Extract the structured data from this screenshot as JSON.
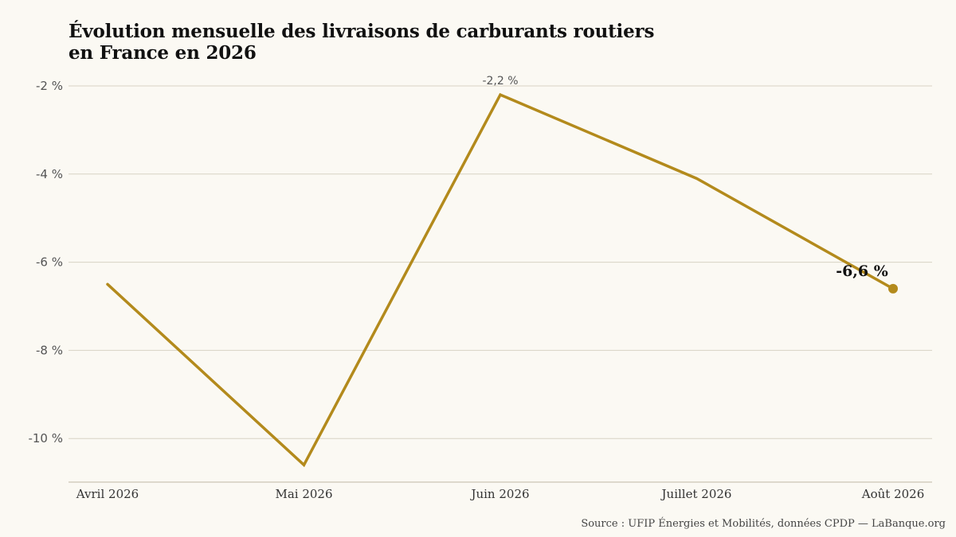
{
  "title_lines": [
    "Évolution mensuelle des livraisons de carburants routiers",
    "en France en 2026"
  ],
  "source": "Source : UFIP Énergies et Mobilités, données CPDP — LaBanque.org",
  "colors": {
    "background": "#fbf9f3",
    "line": "#b38a1c",
    "grid": "#d8d3c4",
    "axis_text": "#555555",
    "title": "#111111"
  },
  "chart_data": {
    "type": "line",
    "categories": [
      "Avril 2026",
      "Mai 2026",
      "Juin 2026",
      "Juillet 2026",
      "Août 2026"
    ],
    "series": [
      {
        "values": [
          -6.5,
          -10.6,
          -2.2,
          -4.1,
          -6.6
        ]
      }
    ],
    "yticks": [
      -2,
      -4,
      -6,
      -8,
      -10
    ],
    "ytick_labels": [
      "-2 %",
      "-4 %",
      "-6 %",
      "-8 %",
      "-10 %"
    ],
    "ylim": [
      -11,
      -1.4
    ],
    "grid": true,
    "annotations": [
      {
        "category": "Juin 2026",
        "text": "-2,2 %",
        "style": "plain"
      },
      {
        "category": "Août 2026",
        "text": "-6,6 %",
        "style": "bold",
        "marker": true
      }
    ]
  }
}
